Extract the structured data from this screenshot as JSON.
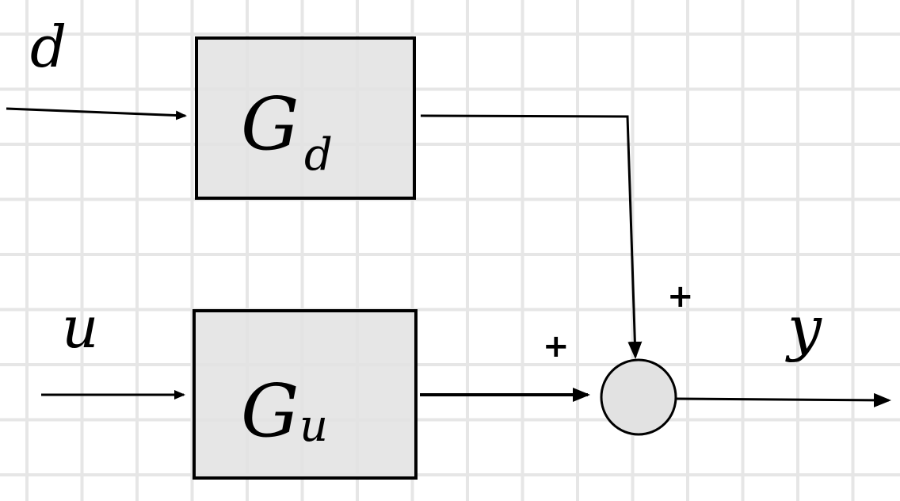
{
  "diagram": {
    "type": "block-diagram",
    "colors": {
      "background": "#ffffff",
      "grid": "#e6e6e6",
      "block_fill": "#e2e2e2",
      "stroke": "#000000"
    },
    "inputs": {
      "disturbance": "d",
      "control": "u"
    },
    "blocks": {
      "disturbance_block": {
        "symbol": "G",
        "subscript": "d"
      },
      "plant_block": {
        "symbol": "G",
        "subscript": "u"
      }
    },
    "summing_junction": {
      "top_sign": "+",
      "left_sign": "+"
    },
    "output": "y"
  }
}
